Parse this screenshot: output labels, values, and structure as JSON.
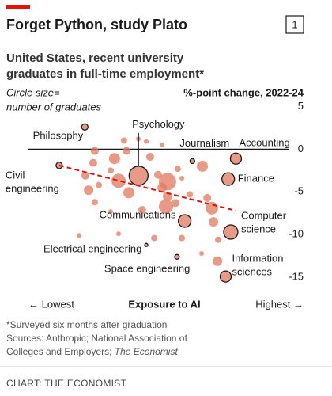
{
  "chart_data": {
    "type": "scatter",
    "chart_number": "1",
    "title": "Forget Python, study Plato",
    "subtitle": "United States, recent university graduates in full-time employment*",
    "size_note": [
      "Circle size=",
      "number of graduates"
    ],
    "y_label": "%-point change, 2022-24",
    "x_low": "← Lowest",
    "x_label": "Exposure to AI",
    "x_high": "Highest →",
    "xlim": [
      0,
      100
    ],
    "ylim": [
      -16,
      5.5
    ],
    "yticks": [
      5,
      0,
      -5,
      -10,
      -15
    ],
    "color": "#e2785e",
    "outline": "#1a1a1a",
    "trend_color": "#e3120b",
    "x": [
      22,
      43,
      64,
      81,
      12,
      78,
      61,
      79,
      46,
      58,
      77,
      25.9,
      25.3,
      22.2,
      23.5,
      27.5,
      32.1,
      33.6,
      35.2,
      37.3,
      38.3,
      39.2,
      46,
      47.5,
      50.6,
      52.2,
      54.3,
      53.7,
      54.3,
      57.4,
      58.3,
      59.9,
      63,
      67.9,
      69.8,
      71.6,
      72.2,
      74.1,
      32.1,
      19.8,
      44.4,
      49.1,
      59.9,
      42.9,
      52.2,
      73.8,
      35.2,
      67.6,
      25.9
    ],
    "y": [
      2.6,
      -3.1,
      -1.4,
      -1.1,
      -1.9,
      -3.5,
      -8.4,
      -9.7,
      -11.2,
      -12.6,
      -14.9,
      -0.2,
      -1.6,
      -3.1,
      -4.8,
      -4.2,
      -2.5,
      -1.1,
      -3.7,
      1,
      -0.2,
      -5.1,
      0.9,
      -0.9,
      -3,
      -4.5,
      -3.8,
      -6.7,
      -5.5,
      -6.3,
      -2.3,
      -3.4,
      -5.3,
      -2,
      -5.7,
      -6.9,
      -8.5,
      -10.6,
      -7.3,
      -10.1,
      -7.1,
      -10.4,
      -10.4,
      1.2,
      0.5,
      -13.1,
      -9.9,
      -12.2,
      -6.2
    ],
    "sizes": [
      4,
      12,
      3,
      7,
      4,
      8,
      8,
      9,
      2,
      3,
      7,
      5,
      5,
      5,
      6,
      4,
      4,
      7,
      9,
      4,
      5,
      7,
      3,
      5,
      5,
      6,
      11,
      9,
      6,
      5,
      4,
      3,
      4,
      7,
      5,
      8,
      6,
      4,
      3,
      3,
      5,
      4,
      4,
      3,
      3,
      6,
      3,
      3,
      4
    ],
    "labels": [
      [
        "Philosophy"
      ],
      [
        "Psychology"
      ],
      [
        "Journalism"
      ],
      [
        "Accounting"
      ],
      [
        "Civil",
        "engineering"
      ],
      [
        "Finance"
      ],
      [
        "Communications"
      ],
      [
        "Computer",
        "science"
      ],
      [
        "Electrical engineering"
      ],
      [
        "Space engineering"
      ],
      [
        "Information",
        "sciences"
      ],
      null,
      null,
      null,
      null,
      null,
      null,
      null,
      null,
      null,
      null,
      null,
      null,
      null,
      null,
      null,
      null,
      null,
      null,
      null,
      null,
      null,
      null,
      null,
      null,
      null,
      null,
      null,
      null,
      null,
      null,
      null,
      null,
      null,
      null,
      null,
      null,
      null,
      null
    ],
    "trend": {
      "x": [
        12,
        81
      ],
      "y": [
        -1.9,
        -7.2
      ]
    },
    "footnote": "*Surveyed six months after graduation",
    "sources": "Sources: Anthropic; National Association of Colleges and Employers;",
    "sources_italic": "The Economist",
    "credit": "CHART: THE ECONOMIST"
  }
}
